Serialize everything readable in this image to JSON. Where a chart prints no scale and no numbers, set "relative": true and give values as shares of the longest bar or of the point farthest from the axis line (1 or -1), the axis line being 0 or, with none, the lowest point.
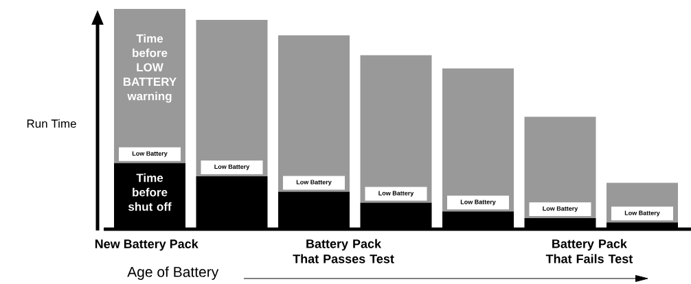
{
  "chart_data": {
    "type": "bar",
    "stacked": true,
    "relative": true,
    "categories": [
      null,
      null,
      null,
      null,
      null,
      null,
      null
    ],
    "series": [
      {
        "color": "#000000",
        "values": [
          0.3,
          0.24,
          0.17,
          0.12,
          0.08,
          0.05,
          0.03
        ]
      },
      {
        "color": "#999999",
        "values": [
          0.7,
          0.71,
          0.71,
          0.67,
          0.65,
          0.46,
          0.18
        ]
      }
    ],
    "ylabel": "Run Time",
    "xlabel": "Age of Battery",
    "annotations": [
      "Low Battery",
      "Low Battery",
      "Low Battery",
      "Low Battery",
      "Low Battery",
      "Low Battery",
      "Low Battery",
      "Time before LOW BATTERY warning",
      "Time before shut off",
      "New Battery Pack",
      "Battery Pack That Passes Test",
      "Battery Pack That Fails Test"
    ]
  }
}
